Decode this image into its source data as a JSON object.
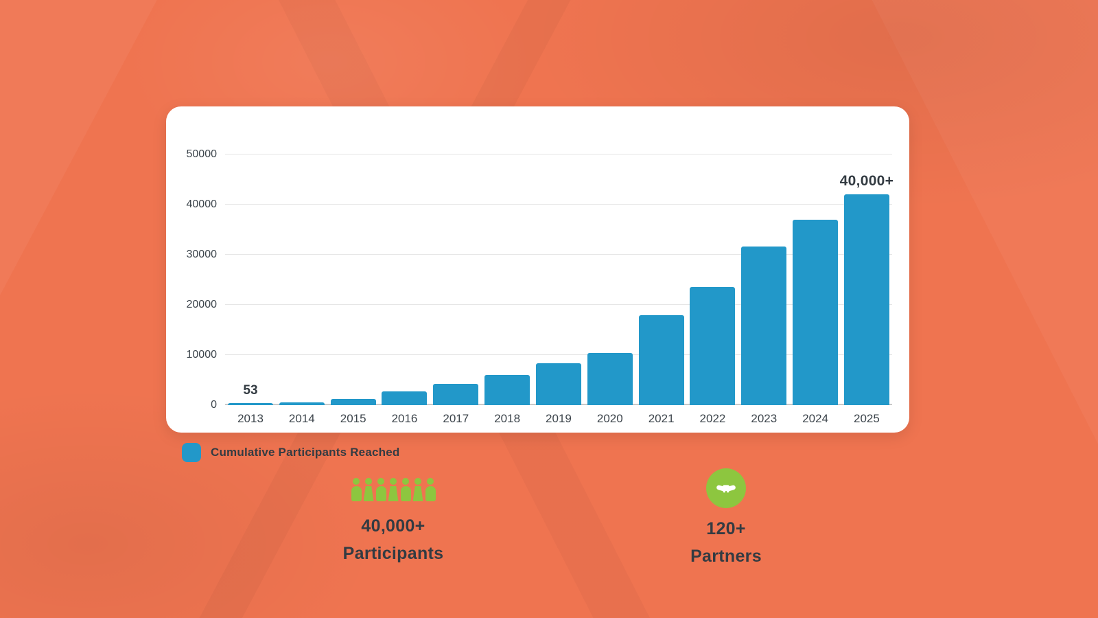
{
  "page": {
    "background_color": "#ef7450",
    "card_color": "#ffffff"
  },
  "chart_data": {
    "type": "bar",
    "title": "",
    "xlabel": "",
    "ylabel": "",
    "categories": [
      "2013",
      "2014",
      "2015",
      "2016",
      "2017",
      "2018",
      "2019",
      "2020",
      "2021",
      "2022",
      "2023",
      "2024",
      "2025"
    ],
    "values": [
      53,
      600,
      1300,
      2700,
      4200,
      6000,
      8300,
      10400,
      18000,
      23500,
      31700,
      37000,
      42000
    ],
    "bar_labels": [
      "53",
      "",
      "",
      "",
      "",
      "",
      "",
      "",
      "",
      "",
      "",
      "",
      "40,000+"
    ],
    "series_name": "Cumulative Participants Reached",
    "ylim": [
      0,
      50000
    ],
    "yticks": [
      0,
      10000,
      20000,
      30000,
      40000,
      50000
    ],
    "grid": true,
    "legend_position": "bottom-left",
    "bar_color": "#2298c9"
  },
  "legend": {
    "label": "Cumulative Participants Reached",
    "swatch_color": "#2298c9"
  },
  "stats": {
    "participants": {
      "value": "40,000+",
      "label": "Participants",
      "icon": "people-row-icon",
      "icon_color": "#8dc63f",
      "icon_count": 7
    },
    "partners": {
      "value": "120+",
      "label": "Partners",
      "icon": "handshake-icon",
      "icon_color": "#8dc63f"
    }
  }
}
